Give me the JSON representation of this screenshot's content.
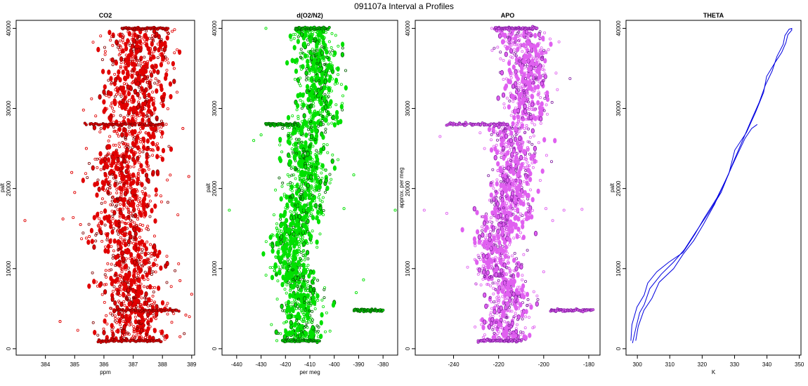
{
  "figure": {
    "title": "091107a   Interval a Profiles"
  },
  "chart_data": [
    {
      "type": "scatter",
      "title": "CO2",
      "xlabel": "ppm",
      "ylabel": "palt",
      "xlim": [
        383.0,
        389.1
      ],
      "ylim": [
        -800,
        41000
      ],
      "xticks": [
        384,
        385,
        386,
        387,
        388,
        389
      ],
      "yticks": [
        0,
        10000,
        20000,
        30000,
        40000
      ],
      "color": "#e00000",
      "edge_color": "#800000",
      "grid": false,
      "series": [
        {
          "profile": [
            [
              387.0,
              1000
            ],
            [
              386.9,
              3000
            ],
            [
              387.2,
              5000
            ],
            [
              386.8,
              8000
            ],
            [
              387.1,
              11000
            ],
            [
              386.6,
              14000
            ],
            [
              386.7,
              17000
            ],
            [
              386.9,
              20000
            ],
            [
              386.6,
              23000
            ],
            [
              387.1,
              26000
            ],
            [
              387.0,
              28000
            ],
            [
              387.0,
              31000
            ],
            [
              387.1,
              34000
            ],
            [
              387.2,
              37000
            ],
            [
              387.1,
              40000
            ]
          ],
          "spread": 0.55,
          "points": 1700,
          "outliers": [
            [
              383.3,
              16000
            ],
            [
              384.5,
              3400
            ],
            [
              384.6,
              16200
            ],
            [
              384.9,
              22000
            ],
            [
              385.0,
              19500
            ],
            [
              385.2,
              15500
            ],
            [
              385.3,
              29800
            ],
            [
              385.5,
              14000
            ],
            [
              385.4,
              25000
            ],
            [
              388.7,
              27500
            ],
            [
              388.9,
              21500
            ],
            [
              389.0,
              6800
            ],
            [
              388.8,
              4200
            ],
            [
              388.6,
              8500
            ],
            [
              388.4,
              35000
            ],
            [
              388.6,
              1500
            ]
          ],
          "bands": [
            {
              "y": 40000,
              "x": [
                386.6,
                388.2
              ]
            },
            {
              "y": 28000,
              "x": [
                385.4,
                388.1
              ]
            },
            {
              "y": 4800,
              "x": [
                386.4,
                388.6
              ]
            },
            {
              "y": 1000,
              "x": [
                385.8,
                388.0
              ]
            }
          ]
        }
      ]
    },
    {
      "type": "scatter",
      "title": "d(O2/N2)",
      "xlabel": "per meg",
      "ylabel": "palt",
      "xlim": [
        -446,
        -374
      ],
      "ylim": [
        -800,
        41000
      ],
      "xticks": [
        -440,
        -430,
        -420,
        -410,
        -400,
        -390,
        -380
      ],
      "yticks": [
        0,
        10000,
        20000,
        30000,
        40000
      ],
      "color": "#00e000",
      "edge_color": "#006000",
      "grid": false,
      "series": [
        {
          "profile": [
            [
              -413,
              1000
            ],
            [
              -415,
              3000
            ],
            [
              -412,
              6000
            ],
            [
              -416,
              9000
            ],
            [
              -418,
              12000
            ],
            [
              -416,
              15000
            ],
            [
              -413,
              18000
            ],
            [
              -412,
              21000
            ],
            [
              -411,
              24000
            ],
            [
              -413,
              27000
            ],
            [
              -406,
              29000
            ],
            [
              -407,
              32000
            ],
            [
              -406,
              35000
            ],
            [
              -407,
              37000
            ],
            [
              -410,
              40000
            ]
          ],
          "spread": 4.2,
          "points": 1700,
          "outliers": [
            [
              -443,
              17300
            ],
            [
              -375,
              17300
            ],
            [
              -428,
              40000
            ],
            [
              -392,
              21700
            ],
            [
              -430,
              26700
            ],
            [
              -396,
              17500
            ],
            [
              -391,
              7000
            ],
            [
              -388,
              8600
            ],
            [
              -433,
              26000
            ],
            [
              -399,
              29200
            ]
          ],
          "bands": [
            {
              "y": 40000,
              "x": [
                -416,
                -402
              ]
            },
            {
              "y": 28000,
              "x": [
                -428,
                -414
              ]
            },
            {
              "y": 4800,
              "x": [
                -392,
                -380
              ]
            },
            {
              "y": 1000,
              "x": [
                -421,
                -406
              ]
            }
          ]
        }
      ]
    },
    {
      "type": "scatter",
      "title": "APO",
      "xlabel": "",
      "ylabel": "approx. per meg",
      "xlim": [
        -257,
        -175
      ],
      "ylim": [
        -800,
        41000
      ],
      "xticks": [
        -240,
        -220,
        -200,
        -180
      ],
      "yticks": [
        0,
        10000,
        20000,
        30000,
        40000
      ],
      "color": "#e060f0",
      "edge_color": "#8020a0",
      "grid": false,
      "series": [
        {
          "profile": [
            [
              -215,
              1000
            ],
            [
              -218,
              3000
            ],
            [
              -214,
              6000
            ],
            [
              -219,
              9000
            ],
            [
              -221,
              12000
            ],
            [
              -219,
              15000
            ],
            [
              -215,
              18000
            ],
            [
              -213,
              21000
            ],
            [
              -212,
              24000
            ],
            [
              -215,
              27000
            ],
            [
              -207,
              29000
            ],
            [
              -208,
              32000
            ],
            [
              -207,
              35000
            ],
            [
              -208,
              37000
            ],
            [
              -212,
              40000
            ]
          ],
          "spread": 5.0,
          "points": 1700,
          "outliers": [
            [
              -253,
              17300
            ],
            [
              -243,
              16900
            ],
            [
              -191,
              17300
            ],
            [
              -199,
              17500
            ],
            [
              -196,
              16000
            ],
            [
              -200,
              9600
            ],
            [
              -183,
              17400
            ],
            [
              -223,
              40000
            ],
            [
              -246,
              26500
            ]
          ],
          "bands": [
            {
              "y": 40000,
              "x": [
                -222,
                -203
              ]
            },
            {
              "y": 28000,
              "x": [
                -243,
                -216
              ]
            },
            {
              "y": 4800,
              "x": [
                -197,
                -178
              ]
            },
            {
              "y": 1000,
              "x": [
                -229,
                -210
              ]
            }
          ]
        }
      ]
    },
    {
      "type": "line",
      "title": "THETA",
      "xlabel": "K",
      "ylabel": "palt",
      "xlim": [
        296.5,
        350.5
      ],
      "ylim": [
        -800,
        41000
      ],
      "xticks": [
        300,
        310,
        320,
        330,
        340,
        350
      ],
      "yticks": [
        0,
        10000,
        20000,
        30000,
        40000
      ],
      "color": "#0000e0",
      "grid": false,
      "series": [
        {
          "x": [
            298.5,
            299.5,
            301.0,
            302.3,
            304.0,
            307.5,
            311.0,
            314.5,
            318.0,
            322.0,
            325.0,
            328.0,
            331.0,
            333.5,
            336.0,
            338.5,
            340.5,
            342.5,
            344.5,
            345.8,
            346.6,
            347.2,
            347.5
          ],
          "y": [
            700,
            2500,
            4500,
            5500,
            7500,
            9300,
            10800,
            12400,
            14500,
            17000,
            19500,
            22000,
            24800,
            27000,
            29500,
            32000,
            34000,
            35800,
            37000,
            38200,
            39200,
            39800,
            40000
          ]
        },
        {
          "x": [
            298.0,
            298.7,
            299.8,
            301.2,
            303.0,
            306.0,
            310.0,
            313.5,
            317.5,
            321.0,
            324.5,
            327.5,
            330.0,
            332.5,
            335.0,
            337.5,
            339.5,
            341.5,
            343.5,
            345.2,
            346.2,
            347.0,
            347.8
          ],
          "y": [
            1000,
            3000,
            5200,
            6700,
            8200,
            9600,
            10800,
            12000,
            14300,
            16300,
            18800,
            21600,
            23800,
            25800,
            28300,
            30800,
            32900,
            34700,
            36500,
            38000,
            39100,
            39900,
            40000
          ]
        },
        {
          "x": [
            299.5,
            300.5,
            302.2,
            304.5,
            307.0,
            310.5,
            314.0,
            317.0,
            320.0,
            323.5,
            327.0,
            330.5,
            333.5,
            335.5,
            337.0
          ],
          "y": [
            1000,
            2800,
            4800,
            6300,
            8300,
            10000,
            11800,
            13500,
            15500,
            18000,
            20800,
            23800,
            26300,
            27500,
            28000
          ]
        }
      ]
    }
  ]
}
